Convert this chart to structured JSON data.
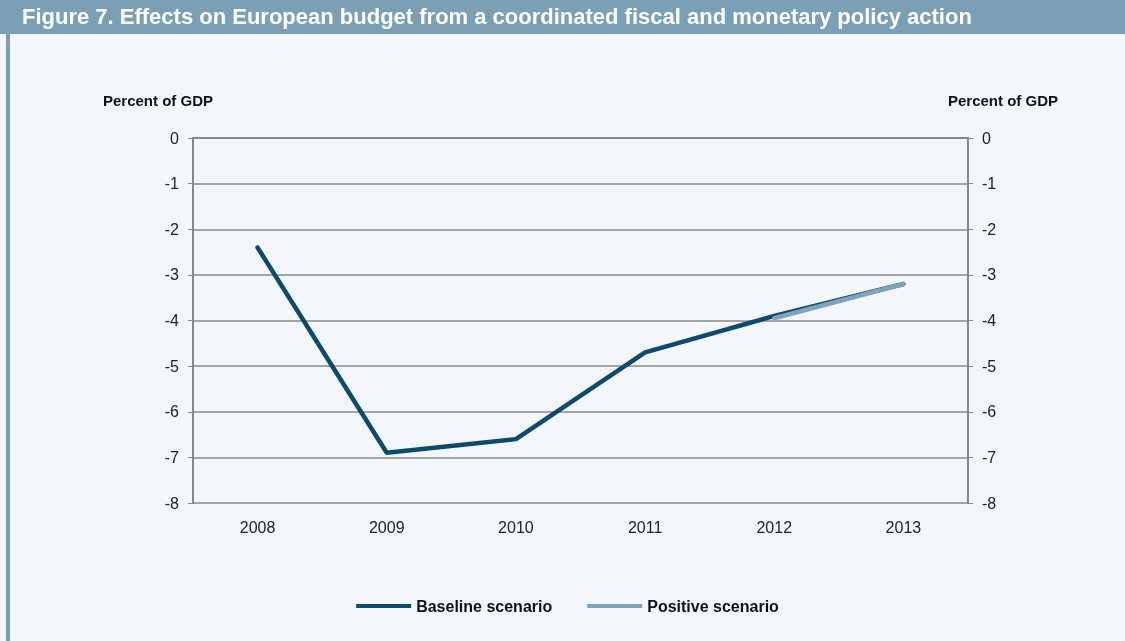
{
  "chart_data": {
    "type": "line",
    "title": "Figure 7. Effects on European budget from a coordinated fiscal and monetary policy action",
    "ylabel": "Percent of GDP",
    "y2label": "Percent of GDP",
    "categories": [
      "2008",
      "2009",
      "2010",
      "2011",
      "2012",
      "2013"
    ],
    "series": [
      {
        "name": "Baseline scenario",
        "color": "#0d4a6e",
        "values": [
          -2.4,
          -6.9,
          -6.6,
          -4.7,
          -3.9,
          -3.2
        ]
      },
      {
        "name": "Positive scenario",
        "color": "#7fa3ba",
        "values": [
          null,
          null,
          null,
          null,
          -3.95,
          -3.2
        ]
      }
    ],
    "ylim": [
      -8,
      0
    ],
    "yticks": [
      -8,
      -7,
      -6,
      -5,
      -4,
      -3,
      -2,
      -1,
      0
    ],
    "y2lim": [
      -8,
      0
    ],
    "y2ticks": [
      -8,
      -7,
      -6,
      -5,
      -4,
      -3,
      -2,
      -1,
      0
    ],
    "grid": "y",
    "legend": "bottom",
    "marker": "none",
    "line_style": "solid"
  }
}
